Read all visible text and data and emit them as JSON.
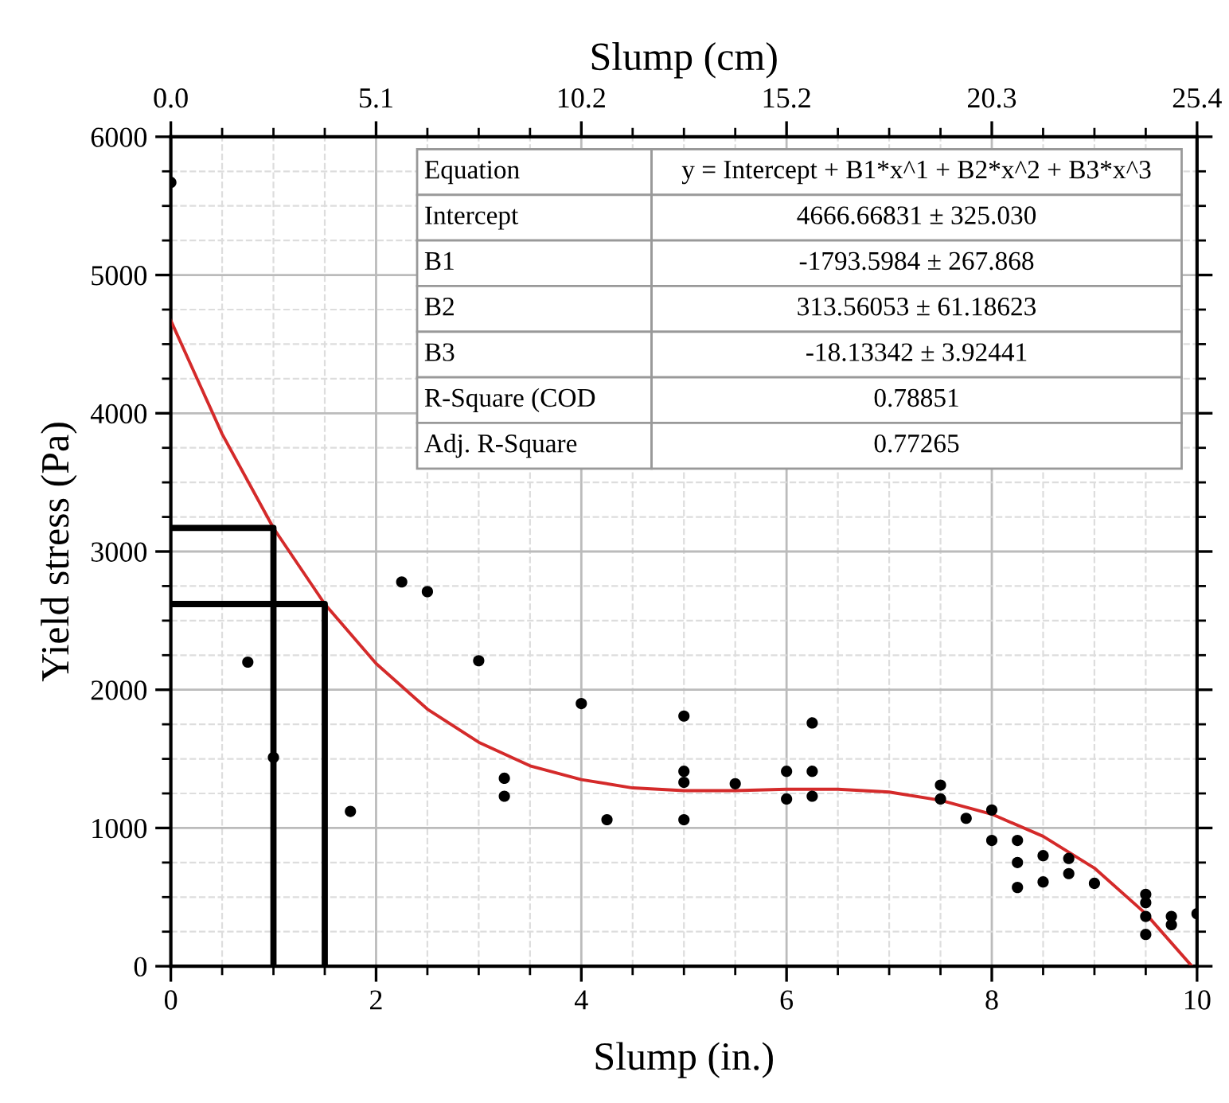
{
  "chart_data": {
    "type": "scatter",
    "xlabel": "Slump (in.)",
    "x2label": "Slump (cm)",
    "ylabel": "Yield stress (Pa)",
    "xlim": [
      0,
      10
    ],
    "xticks": [
      0,
      {
        "value": 0.5,
        "label": null
      },
      {
        "value": 1,
        "label": null
      },
      {
        "value": 1.5,
        "label": null
      },
      2,
      {
        "value": 2.5,
        "label": null
      },
      {
        "value": 3,
        "label": null
      },
      {
        "value": 3.5,
        "label": null
      },
      4,
      {
        "value": 4.5,
        "label": null
      },
      {
        "value": 5,
        "label": null
      },
      {
        "value": 5.5,
        "label": null
      },
      6,
      {
        "value": 6.5,
        "label": null
      },
      {
        "value": 7,
        "label": null
      },
      {
        "value": 7.5,
        "label": null
      },
      8,
      {
        "value": 8.5,
        "label": null
      },
      {
        "value": 9,
        "label": null
      },
      {
        "value": 9.5,
        "label": null
      },
      10
    ],
    "ylim": [
      0,
      6000
    ],
    "yticks": [
      0,
      {
        "value": 250,
        "label": null
      },
      {
        "value": 500,
        "label": null
      },
      {
        "value": 750,
        "label": null
      },
      1000,
      {
        "value": 1250,
        "label": null
      },
      {
        "value": 1500,
        "label": null
      },
      {
        "value": 1750,
        "label": null
      },
      2000,
      {
        "value": 2250,
        "label": null
      },
      {
        "value": 2500,
        "label": null
      },
      {
        "value": 2750,
        "label": null
      },
      3000,
      {
        "value": 3250,
        "label": null
      },
      {
        "value": 3500,
        "label": null
      },
      {
        "value": 3750,
        "label": null
      },
      4000,
      {
        "value": 4250,
        "label": null
      },
      {
        "value": 4500,
        "label": null
      },
      {
        "value": 4750,
        "label": null
      },
      5000,
      {
        "value": 5250,
        "label": null
      },
      {
        "value": 5500,
        "label": null
      },
      {
        "value": 5750,
        "label": null
      },
      6000
    ],
    "x2lim": [
      0,
      25.4
    ],
    "x2ticks": [
      {
        "value": 0,
        "label": "0.0"
      },
      {
        "value": 1.27,
        "label": null
      },
      {
        "value": 2.54,
        "label": null
      },
      {
        "value": 3.81,
        "label": null
      },
      {
        "value": 5.08,
        "label": "5.1"
      },
      {
        "value": 6.35,
        "label": null
      },
      {
        "value": 7.62,
        "label": null
      },
      {
        "value": 8.89,
        "label": null
      },
      {
        "value": 10.16,
        "label": "10.2"
      },
      {
        "value": 11.43,
        "label": null
      },
      {
        "value": 12.7,
        "label": null
      },
      {
        "value": 13.97,
        "label": null
      },
      {
        "value": 15.24,
        "label": "15.2"
      },
      {
        "value": 16.51,
        "label": null
      },
      {
        "value": 17.78,
        "label": null
      },
      {
        "value": 19.05,
        "label": null
      },
      {
        "value": 20.32,
        "label": "20.3"
      },
      {
        "value": 21.59,
        "label": null
      },
      {
        "value": 22.86,
        "label": null
      },
      {
        "value": 24.13,
        "label": null
      },
      {
        "value": 25.4,
        "label": "25.4"
      }
    ],
    "grid": true,
    "marker": "circle",
    "series": [
      {
        "color": "#000000",
        "x": [
          0,
          0.75,
          1,
          1.75,
          2.25,
          2.5,
          3,
          3.25,
          3.25,
          4,
          4.25,
          5,
          5,
          5,
          5,
          5.5,
          6,
          6,
          6.25,
          6.25,
          6.25,
          7.5,
          7.5,
          7.75,
          8,
          8,
          8.25,
          8.25,
          8.25,
          8.5,
          8.5,
          8.75,
          8.75,
          9,
          9.5,
          9.5,
          9.5,
          9.5,
          9.75,
          9.75,
          10
        ],
        "values": [
          5670,
          2200,
          1510,
          1120,
          2780,
          2710,
          2210,
          1360,
          1230,
          1900,
          1060,
          1810,
          1410,
          1330,
          1060,
          1320,
          1410,
          1210,
          1760,
          1410,
          1230,
          1310,
          1210,
          1070,
          1130,
          910,
          910,
          750,
          570,
          800,
          610,
          780,
          670,
          600,
          520,
          460,
          360,
          230,
          360,
          300,
          380
        ]
      },
      {
        "type": "line",
        "color": "#d42a2a",
        "marker": "none",
        "x": [
          0,
          0.5,
          1,
          1.5,
          2,
          2.5,
          3,
          3.5,
          4,
          4.5,
          5,
          5.5,
          6,
          6.5,
          7,
          7.5,
          8,
          8.5,
          9,
          9.5,
          9.95
        ],
        "values": [
          4670,
          3850,
          3170,
          2620,
          2190,
          1860,
          1620,
          1450,
          1350,
          1290,
          1270,
          1270,
          1280,
          1280,
          1260,
          1200,
          1100,
          940,
          710,
          380,
          0
        ]
      },
      {
        "type": "line",
        "color": "#000000",
        "marker": "none",
        "x": [
          0,
          1,
          1
        ],
        "values": [
          3170,
          3170,
          0
        ]
      },
      {
        "type": "line",
        "color": "#000000",
        "marker": "none",
        "x": [
          0,
          1.5,
          1.5
        ],
        "values": [
          2620,
          2620,
          0
        ]
      }
    ],
    "annotations": [
      "Equation",
      "y = Intercept + B1*x^1 + B2*x^2 + B3*x^3",
      "Intercept",
      "4666.66831 ± 325.030",
      "B1",
      "-1793.5984 ± 267.868",
      "B2",
      "313.56053 ± 61.18623",
      "B3",
      "-18.13342 ± 3.92441",
      "R-Square (COD",
      "0.78851",
      "Adj. R-Square",
      "0.77265"
    ]
  }
}
